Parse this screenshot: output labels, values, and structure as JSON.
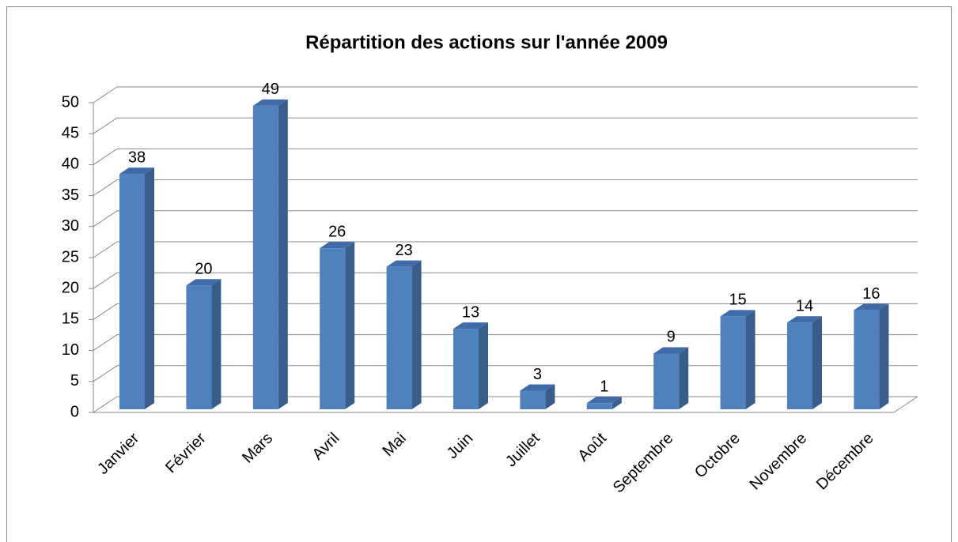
{
  "chart_data": {
    "type": "bar3d",
    "title": "Répartition des actions sur l'année 2009",
    "categories": [
      "Janvier",
      "Février",
      "Mars",
      "Avril",
      "Mai",
      "Juin",
      "Juillet",
      "Août",
      "Septembre",
      "Octobre",
      "Novembre",
      "Décembre"
    ],
    "values": [
      38,
      20,
      49,
      26,
      23,
      13,
      3,
      1,
      9,
      15,
      14,
      16
    ],
    "color": "#4f81bd",
    "ylim": [
      0,
      50
    ],
    "yticks": [
      0,
      5,
      10,
      15,
      20,
      25,
      30,
      35,
      40,
      45,
      50
    ],
    "grid": true
  }
}
